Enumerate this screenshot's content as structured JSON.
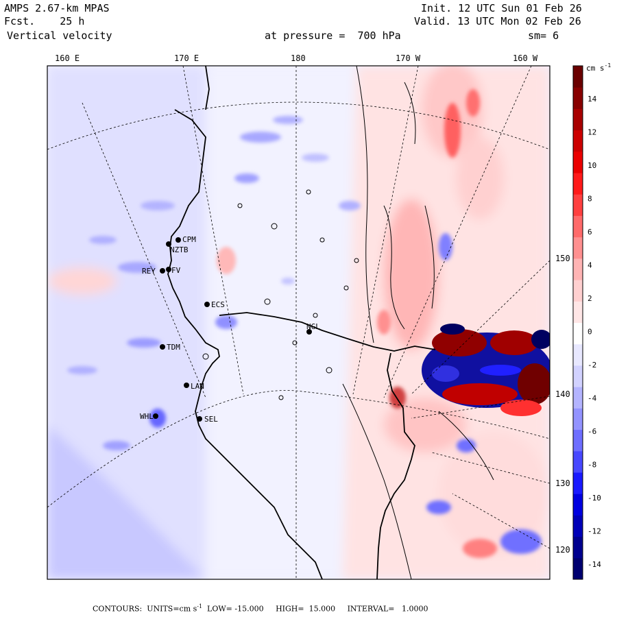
{
  "header": {
    "model": "AMPS 2.67-km MPAS",
    "init": "Init. 12 UTC Sun 01 Feb 26",
    "fcst": "Fcst.    25 h",
    "valid": "Valid. 13 UTC Mon 02 Feb 26",
    "field": "Vertical velocity",
    "level": "at pressure =  700 hPa",
    "smooth": "sm= 6"
  },
  "top_longitudes": [
    "160 E",
    "170 E",
    "180",
    "170 W",
    "160 W"
  ],
  "right_longitudes": [
    "150 W",
    "140 W",
    "130 W",
    "120 W"
  ],
  "stations": [
    {
      "id": "CPM"
    },
    {
      "id": "NZTB"
    },
    {
      "id": "REY"
    },
    {
      "id": "FV"
    },
    {
      "id": "ECS"
    },
    {
      "id": "NGL"
    },
    {
      "id": "TDM"
    },
    {
      "id": "LAN"
    },
    {
      "id": "WHL"
    },
    {
      "id": "SEL"
    }
  ],
  "colorbar": {
    "units_label": "cm s",
    "units_exp": "-1",
    "tick_labels": [
      "14",
      "12",
      "10",
      "8",
      "6",
      "4",
      "2",
      "0",
      "-2",
      "-4",
      "-6",
      "-8",
      "-10",
      "-12",
      "-14"
    ],
    "colors": [
      "#000070",
      "#00008f",
      "#0000b8",
      "#0000e0",
      "#1a1aff",
      "#4848ff",
      "#6e6eff",
      "#9393ff",
      "#b4b4ff",
      "#d2d2ff",
      "#e8e8ff",
      "#ffffff",
      "#ffe6e6",
      "#ffd0d0",
      "#ffb4b4",
      "#ff9090",
      "#ff6a6a",
      "#ff4040",
      "#ff1a1a",
      "#ea0000",
      "#cc0000",
      "#a80000",
      "#880000",
      "#6a0000"
    ]
  },
  "footer": {
    "contours_prefix": "CONTOURS:  UNITS=cm s",
    "units_exp": "-1",
    "low_high": "  LOW= -15.000     HIGH=  15.000     INTERVAL=   1.0000"
  }
}
